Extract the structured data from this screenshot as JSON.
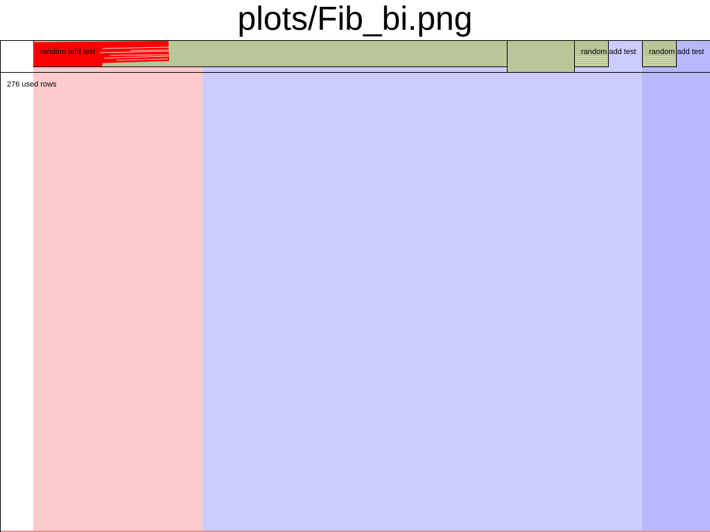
{
  "title": "plots/Fib_bi.png",
  "diagram": {
    "stats": "276 used rows",
    "blocks": [
      {
        "id": "main",
        "label": "random add test"
      },
      {
        "id": "tall",
        "label": ""
      },
      {
        "id": "small-1",
        "label": "random add test"
      },
      {
        "id": "small-2",
        "label": "random add test"
      }
    ],
    "colors": {
      "block_fill": "#bac599",
      "band_pink": "#fdcbcb",
      "band_lavender": "#ccccfd",
      "band_blue": "#b8b8fd",
      "red_overlay": "#ff0000"
    }
  }
}
